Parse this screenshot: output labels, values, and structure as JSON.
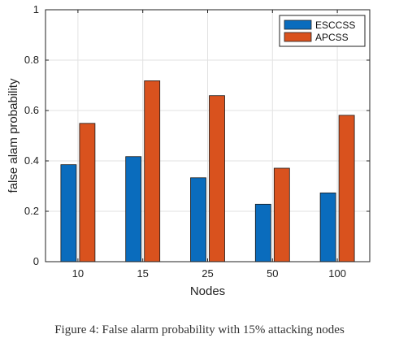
{
  "chart_data": {
    "type": "bar",
    "categories": [
      "10",
      "15",
      "25",
      "50",
      "100"
    ],
    "series": [
      {
        "name": "ESCCSS",
        "color": "#0a6cbd",
        "values": [
          0.385,
          0.417,
          0.333,
          0.228,
          0.273
        ]
      },
      {
        "name": "APCSS",
        "color": "#d9521e",
        "values": [
          0.549,
          0.718,
          0.659,
          0.371,
          0.581
        ]
      }
    ],
    "xlabel": "Nodes",
    "ylabel": "false alam probability",
    "ylim": [
      0,
      1
    ],
    "yticks": [
      "0",
      "0.2",
      "0.4",
      "0.6",
      "0.8",
      "1"
    ],
    "grid": true,
    "legend": "top-right"
  },
  "caption": "Figure 4: False alarm probability with 15% attacking nodes"
}
